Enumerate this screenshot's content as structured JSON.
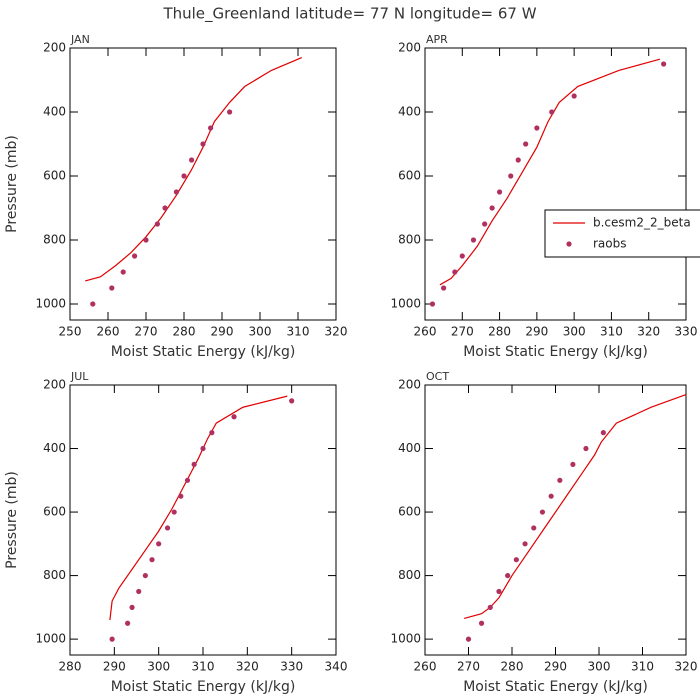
{
  "title": "Thule_Greenland  latitude= 77 N longitude= 67 W",
  "chart_data": [
    {
      "type": "line",
      "title": "JAN",
      "xlabel": "Moist Static Energy (kJ/kg)",
      "ylabel": "Pressure (mb)",
      "xlim": [
        250,
        320
      ],
      "xticks": [
        250,
        260,
        270,
        280,
        290,
        300,
        310,
        320
      ],
      "ylim": [
        1050,
        200
      ],
      "yticks": [
        200,
        400,
        600,
        800,
        1000
      ],
      "series": [
        {
          "kind": "line",
          "color": "#e00000",
          "x": [
            254,
            258,
            262,
            266,
            270,
            274,
            278,
            282,
            285,
            288,
            292,
            296,
            303,
            311
          ],
          "values": [
            928,
            915,
            880,
            840,
            790,
            730,
            660,
            580,
            510,
            430,
            370,
            320,
            270,
            230
          ]
        },
        {
          "kind": "scatter",
          "color": "#b03060",
          "x": [
            256,
            261,
            264,
            267,
            270,
            273,
            275,
            278,
            280,
            282,
            285,
            287,
            292
          ],
          "values": [
            1000,
            950,
            900,
            850,
            800,
            750,
            700,
            650,
            600,
            550,
            500,
            450,
            400
          ]
        }
      ]
    },
    {
      "type": "line",
      "title": "APR",
      "xlabel": "Moist Static Energy (kJ/kg)",
      "xlim": [
        260,
        330
      ],
      "xticks": [
        260,
        270,
        280,
        290,
        300,
        310,
        320,
        330
      ],
      "ylim": [
        1050,
        200
      ],
      "yticks": [
        200,
        400,
        600,
        800,
        1000
      ],
      "legend": "right",
      "series": [
        {
          "name": "b.cesm2_2_beta",
          "kind": "line",
          "color": "#e00000",
          "x": [
            264,
            267,
            270,
            274,
            278,
            282,
            286,
            290,
            293,
            296,
            301,
            312,
            323
          ],
          "values": [
            940,
            920,
            880,
            820,
            740,
            670,
            590,
            510,
            430,
            370,
            320,
            270,
            235
          ]
        },
        {
          "name": "raobs",
          "kind": "scatter",
          "color": "#b03060",
          "x": [
            262,
            265,
            268,
            270,
            273,
            276,
            278,
            280,
            283,
            285,
            287,
            290,
            294,
            300,
            324
          ],
          "values": [
            1000,
            950,
            900,
            850,
            800,
            750,
            700,
            650,
            600,
            550,
            500,
            450,
            400,
            350,
            250
          ]
        }
      ]
    },
    {
      "type": "line",
      "title": "JUL",
      "xlabel": "Moist Static Energy (kJ/kg)",
      "ylabel": "Pressure (mb)",
      "xlim": [
        280,
        340
      ],
      "xticks": [
        280,
        290,
        300,
        310,
        320,
        330,
        340
      ],
      "ylim": [
        1050,
        200
      ],
      "yticks": [
        200,
        400,
        600,
        800,
        1000
      ],
      "series": [
        {
          "kind": "line",
          "color": "#e00000",
          "x": [
            289,
            289.5,
            291,
            294,
            297,
            300,
            303,
            306,
            309,
            311,
            313,
            319,
            329
          ],
          "values": [
            940,
            880,
            840,
            780,
            720,
            660,
            590,
            510,
            430,
            370,
            320,
            270,
            235
          ]
        },
        {
          "kind": "scatter",
          "color": "#b03060",
          "x": [
            289.5,
            293,
            294,
            295.5,
            297,
            298.5,
            300,
            302,
            303.5,
            305,
            306.5,
            308,
            310,
            312,
            317,
            330
          ],
          "values": [
            1000,
            950,
            900,
            850,
            800,
            750,
            700,
            650,
            600,
            550,
            500,
            450,
            400,
            350,
            300,
            250
          ]
        }
      ]
    },
    {
      "type": "line",
      "title": "OCT",
      "xlabel": "Moist Static Energy (kJ/kg)",
      "xlim": [
        260,
        320
      ],
      "xticks": [
        260,
        270,
        280,
        290,
        300,
        310,
        320
      ],
      "ylim": [
        1050,
        200
      ],
      "yticks": [
        200,
        400,
        600,
        800,
        1000
      ],
      "series": [
        {
          "kind": "line",
          "color": "#e00000",
          "x": [
            269,
            273,
            275,
            277,
            280,
            284,
            288,
            292,
            296,
            299,
            300.5,
            304,
            312,
            320
          ],
          "values": [
            935,
            920,
            900,
            870,
            800,
            720,
            640,
            560,
            480,
            420,
            380,
            320,
            270,
            230
          ]
        },
        {
          "kind": "scatter",
          "color": "#b03060",
          "x": [
            270,
            273,
            275,
            277,
            279,
            281,
            283,
            285,
            287,
            289,
            291,
            294,
            297,
            301
          ],
          "values": [
            1000,
            950,
            900,
            850,
            800,
            750,
            700,
            650,
            600,
            550,
            500,
            450,
            400,
            350
          ]
        }
      ]
    }
  ]
}
